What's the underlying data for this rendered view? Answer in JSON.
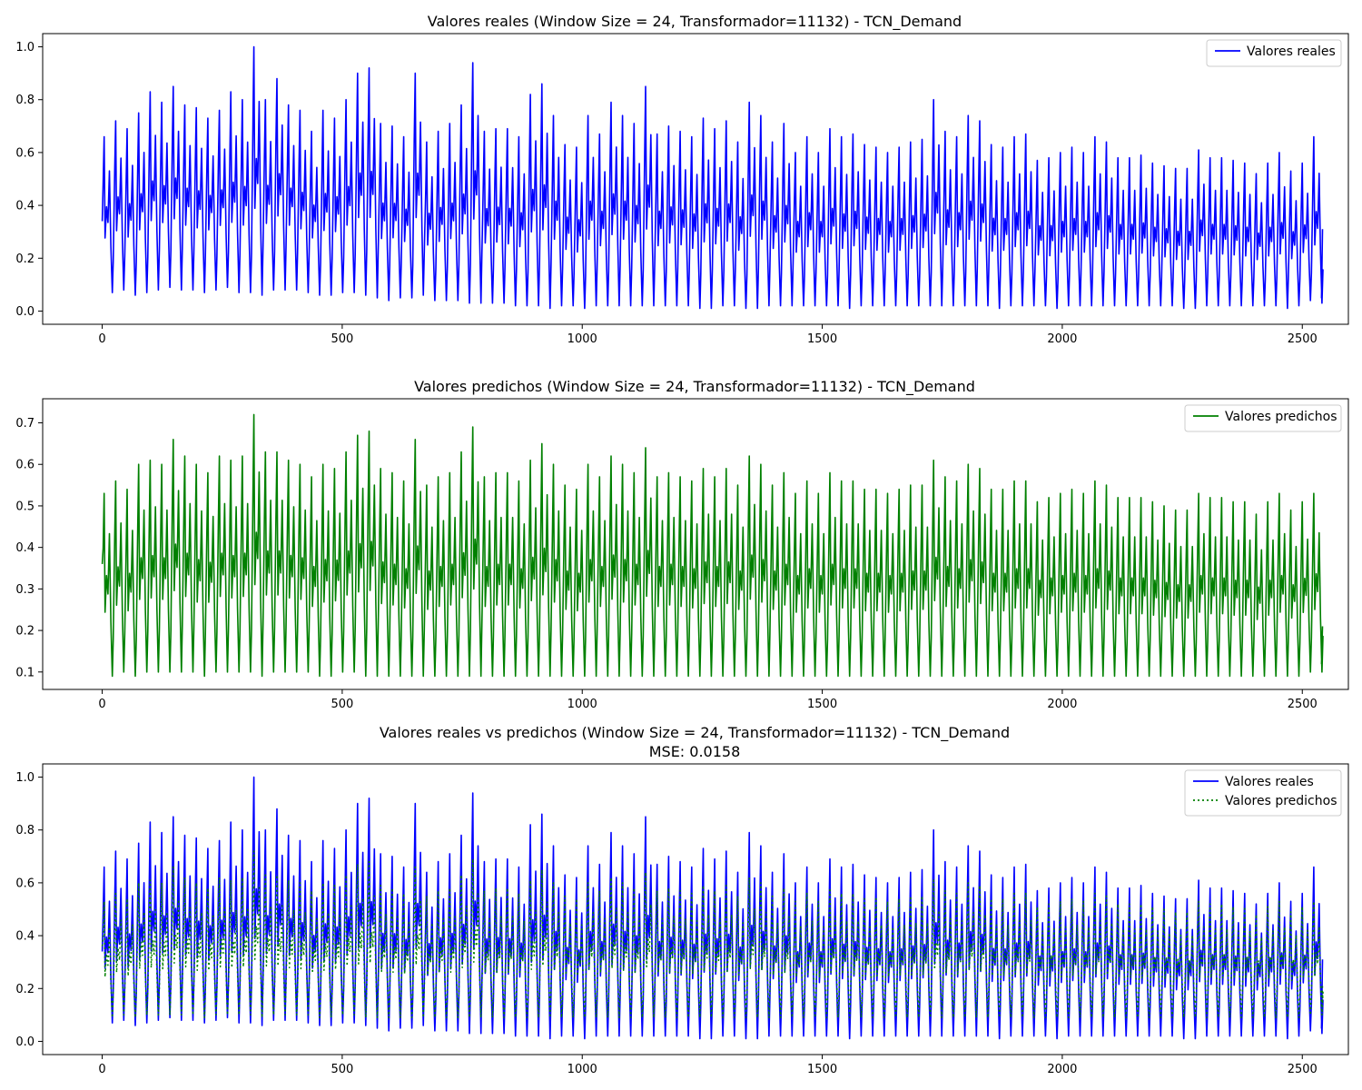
{
  "chart_data": [
    {
      "type": "line",
      "title": "Valores reales (Window Size = 24, Transformador=11132) - TCN_Demand",
      "subtitle": "",
      "xlabel": "",
      "ylabel": "",
      "xlim": [
        -124,
        2596
      ],
      "ylim": [
        -0.05,
        1.05
      ],
      "xticks": [
        0,
        500,
        1000,
        1500,
        2000,
        2500
      ],
      "yticks": [
        0.0,
        0.2,
        0.4,
        0.6,
        0.8,
        1.0
      ],
      "xtick_labels": [
        "0",
        "500",
        "1000",
        "1500",
        "2000",
        "2500"
      ],
      "ytick_labels": [
        "0.0",
        "0.2",
        "0.4",
        "0.6",
        "0.8",
        "1.0"
      ],
      "legend_position": "top-right",
      "grid": false,
      "series": [
        {
          "name": "Valores reales",
          "color": "#0000ff",
          "style": "solid",
          "day_length": 24,
          "start": 0.34,
          "day_peaks": [
            0.66,
            0.72,
            0.69,
            0.75,
            0.83,
            0.79,
            0.85,
            0.78,
            0.77,
            0.73,
            0.76,
            0.83,
            0.8,
            1.0,
            0.8,
            0.88,
            0.78,
            0.76,
            0.68,
            0.76,
            0.73,
            0.8,
            0.9,
            0.92,
            0.71,
            0.7,
            0.66,
            0.9,
            0.64,
            0.68,
            0.71,
            0.78,
            0.94,
            0.68,
            0.69,
            0.69,
            0.66,
            0.82,
            0.86,
            0.74,
            0.63,
            0.62,
            0.74,
            0.67,
            0.79,
            0.74,
            0.71,
            0.85,
            0.67,
            0.7,
            0.68,
            0.66,
            0.73,
            0.69,
            0.72,
            0.64,
            0.79,
            0.74,
            0.64,
            0.71,
            0.6,
            0.66,
            0.6,
            0.69,
            0.66,
            0.67,
            0.63,
            0.62,
            0.6,
            0.62,
            0.64,
            0.65,
            0.8,
            0.68,
            0.66,
            0.74,
            0.72,
            0.63,
            0.62,
            0.66,
            0.67,
            0.57,
            0.58,
            0.6,
            0.62,
            0.6,
            0.66,
            0.64,
            0.58,
            0.58,
            0.59,
            0.56,
            0.55,
            0.54,
            0.54,
            0.61,
            0.58,
            0.58,
            0.57,
            0.56,
            0.52,
            0.56,
            0.6,
            0.53,
            0.56,
            0.66
          ],
          "day_troughs": [
            0.07,
            0.08,
            0.06,
            0.07,
            0.08,
            0.09,
            0.08,
            0.08,
            0.07,
            0.08,
            0.09,
            0.07,
            0.07,
            0.06,
            0.08,
            0.08,
            0.08,
            0.07,
            0.06,
            0.06,
            0.07,
            0.07,
            0.06,
            0.05,
            0.04,
            0.05,
            0.05,
            0.06,
            0.04,
            0.04,
            0.04,
            0.03,
            0.03,
            0.03,
            0.03,
            0.02,
            0.02,
            0.02,
            0.01,
            0.02,
            0.02,
            0.01,
            0.02,
            0.02,
            0.02,
            0.02,
            0.02,
            0.02,
            0.02,
            0.02,
            0.02,
            0.01,
            0.01,
            0.02,
            0.02,
            0.01,
            0.01,
            0.02,
            0.02,
            0.02,
            0.02,
            0.02,
            0.02,
            0.02,
            0.01,
            0.02,
            0.02,
            0.02,
            0.02,
            0.02,
            0.02,
            0.02,
            0.02,
            0.02,
            0.02,
            0.02,
            0.02,
            0.01,
            0.02,
            0.02,
            0.02,
            0.02,
            0.01,
            0.02,
            0.02,
            0.02,
            0.02,
            0.02,
            0.02,
            0.02,
            0.02,
            0.02,
            0.02,
            0.01,
            0.01,
            0.02,
            0.02,
            0.02,
            0.02,
            0.02,
            0.02,
            0.02,
            0.01,
            0.02,
            0.04,
            0.03
          ],
          "end": 0.31
        }
      ]
    },
    {
      "type": "line",
      "title": "Valores predichos (Window Size = 24, Transformador=11132) - TCN_Demand",
      "subtitle": "",
      "xlabel": "",
      "ylabel": "",
      "xlim": [
        -124,
        2596
      ],
      "ylim": [
        0.058,
        0.758
      ],
      "xticks": [
        0,
        500,
        1000,
        1500,
        2000,
        2500
      ],
      "yticks": [
        0.1,
        0.2,
        0.3,
        0.4,
        0.5,
        0.6,
        0.7
      ],
      "xtick_labels": [
        "0",
        "500",
        "1000",
        "1500",
        "2000",
        "2500"
      ],
      "ytick_labels": [
        "0.1",
        "0.2",
        "0.3",
        "0.4",
        "0.5",
        "0.6",
        "0.7"
      ],
      "legend_position": "top-right",
      "grid": false,
      "series": [
        {
          "name": "Valores predichos",
          "color": "#008000",
          "style": "solid",
          "day_length": 24,
          "start": 0.36,
          "day_peaks": [
            0.53,
            0.56,
            0.54,
            0.6,
            0.61,
            0.6,
            0.66,
            0.62,
            0.6,
            0.58,
            0.62,
            0.61,
            0.62,
            0.72,
            0.63,
            0.63,
            0.61,
            0.6,
            0.57,
            0.6,
            0.59,
            0.63,
            0.67,
            0.68,
            0.59,
            0.58,
            0.56,
            0.66,
            0.55,
            0.57,
            0.58,
            0.63,
            0.69,
            0.57,
            0.58,
            0.58,
            0.56,
            0.61,
            0.65,
            0.6,
            0.55,
            0.54,
            0.6,
            0.57,
            0.62,
            0.6,
            0.58,
            0.64,
            0.57,
            0.58,
            0.57,
            0.56,
            0.59,
            0.57,
            0.59,
            0.55,
            0.62,
            0.6,
            0.55,
            0.58,
            0.53,
            0.56,
            0.53,
            0.58,
            0.56,
            0.56,
            0.54,
            0.54,
            0.53,
            0.54,
            0.55,
            0.55,
            0.61,
            0.57,
            0.56,
            0.6,
            0.59,
            0.54,
            0.54,
            0.56,
            0.56,
            0.51,
            0.52,
            0.53,
            0.54,
            0.53,
            0.56,
            0.55,
            0.52,
            0.52,
            0.52,
            0.51,
            0.5,
            0.49,
            0.49,
            0.53,
            0.52,
            0.52,
            0.51,
            0.51,
            0.48,
            0.51,
            0.53,
            0.49,
            0.51,
            0.53
          ],
          "day_troughs": [
            0.09,
            0.1,
            0.09,
            0.1,
            0.1,
            0.1,
            0.1,
            0.1,
            0.09,
            0.1,
            0.1,
            0.1,
            0.1,
            0.09,
            0.1,
            0.1,
            0.1,
            0.1,
            0.09,
            0.09,
            0.1,
            0.1,
            0.09,
            0.09,
            0.09,
            0.09,
            0.09,
            0.09,
            0.09,
            0.09,
            0.09,
            0.09,
            0.09,
            0.09,
            0.09,
            0.09,
            0.09,
            0.09,
            0.09,
            0.09,
            0.09,
            0.09,
            0.09,
            0.09,
            0.09,
            0.09,
            0.09,
            0.09,
            0.09,
            0.09,
            0.09,
            0.09,
            0.09,
            0.09,
            0.09,
            0.09,
            0.09,
            0.09,
            0.09,
            0.09,
            0.09,
            0.09,
            0.09,
            0.09,
            0.09,
            0.09,
            0.09,
            0.09,
            0.09,
            0.09,
            0.09,
            0.09,
            0.09,
            0.09,
            0.09,
            0.09,
            0.09,
            0.09,
            0.09,
            0.09,
            0.09,
            0.09,
            0.09,
            0.09,
            0.09,
            0.09,
            0.09,
            0.09,
            0.09,
            0.09,
            0.09,
            0.09,
            0.09,
            0.09,
            0.09,
            0.09,
            0.09,
            0.09,
            0.09,
            0.09,
            0.09,
            0.09,
            0.09,
            0.09,
            0.1,
            0.1
          ],
          "end": 0.21
        }
      ]
    },
    {
      "type": "line",
      "title": "Valores reales vs predichos (Window Size = 24, Transformador=11132) - TCN_Demand",
      "subtitle": "MSE: 0.0158",
      "xlabel": "",
      "ylabel": "",
      "xlim": [
        -124,
        2596
      ],
      "ylim": [
        -0.05,
        1.05
      ],
      "xticks": [
        0,
        500,
        1000,
        1500,
        2000,
        2500
      ],
      "yticks": [
        0.0,
        0.2,
        0.4,
        0.6,
        0.8,
        1.0
      ],
      "xtick_labels": [
        "0",
        "500",
        "1000",
        "1500",
        "2000",
        "2500"
      ],
      "ytick_labels": [
        "0.0",
        "0.2",
        "0.4",
        "0.6",
        "0.8",
        "1.0"
      ],
      "legend_position": "top-right",
      "grid": false,
      "series": [
        {
          "name": "Valores reales",
          "color": "#0000ff",
          "style": "solid",
          "ref": 0
        },
        {
          "name": "Valores predichos",
          "color": "#008000",
          "style": "dotted",
          "ref": 1
        }
      ]
    }
  ]
}
